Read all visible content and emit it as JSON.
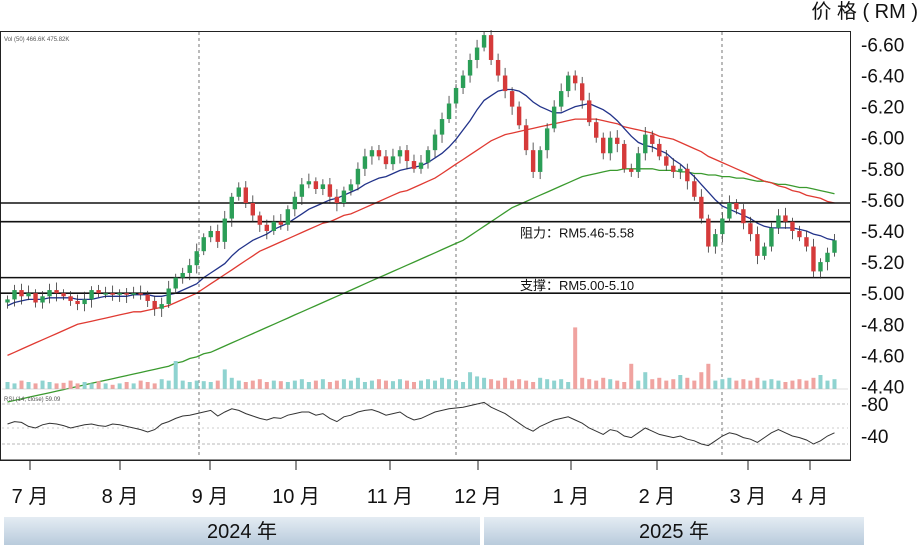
{
  "chart_data": {
    "type": "candlestick",
    "ylabel": "价 格 ( RM )",
    "price_ticks": [
      6.6,
      6.4,
      6.2,
      6.0,
      5.8,
      5.6,
      5.4,
      5.2,
      5.0,
      4.8,
      4.6,
      4.4
    ],
    "price_tick_labels": [
      "-6.60",
      "-6.40",
      "-6.20",
      "-6.00",
      "-5.80",
      "-5.60",
      "-5.40",
      "-5.20",
      "-5.00",
      "-4.80",
      "-4.60",
      "-4.40"
    ],
    "ylim": [
      4.3,
      6.68
    ],
    "rsi_ticks": [
      80,
      40
    ],
    "rsi_tick_labels": [
      "-80",
      "-40"
    ],
    "rsi_header": "RSI (14, close)  59.09",
    "volume_header": "Vol (50)  466.6K  475.82K",
    "months": [
      "7 月",
      "8 月",
      "9 月",
      "10 月",
      "11 月",
      "12 月",
      "1 月",
      "2 月",
      "3 月",
      "4 月"
    ],
    "years": [
      "2024 年",
      "2025 年"
    ],
    "annotations": [
      {
        "text": "阻力：RM5.46-5.58",
        "levels": [
          5.46,
          5.58
        ]
      },
      {
        "text": "支撑：RM5.00-5.10",
        "levels": [
          5.0,
          5.1
        ]
      }
    ],
    "series": [
      {
        "name": "close",
        "values": [
          4.96,
          5.02,
          4.98,
          5.0,
          4.94,
          4.98,
          5.02,
          5.0,
          4.98,
          4.95,
          4.93,
          4.96,
          5.02,
          5.0,
          5.0,
          4.99,
          5.0,
          4.99,
          5.0,
          4.99,
          4.95,
          4.9,
          4.93,
          5.03,
          5.1,
          5.13,
          5.18,
          5.27,
          5.36,
          5.4,
          5.33,
          5.48,
          5.62,
          5.68,
          5.58,
          5.5,
          5.44,
          5.4,
          5.46,
          5.44,
          5.54,
          5.62,
          5.7,
          5.72,
          5.67,
          5.7,
          5.62,
          5.58,
          5.66,
          5.7,
          5.8,
          5.88,
          5.92,
          5.88,
          5.83,
          5.88,
          5.92,
          5.85,
          5.8,
          5.84,
          5.92,
          6.02,
          6.12,
          6.22,
          6.32,
          6.4,
          6.5,
          6.58,
          6.66,
          6.5,
          6.4,
          6.3,
          6.2,
          6.08,
          5.92,
          5.78,
          5.92,
          6.06,
          6.2,
          6.3,
          6.4,
          6.35,
          6.24,
          6.1,
          6.0,
          5.9,
          6.0,
          5.96,
          5.8,
          5.78,
          5.9,
          6.02,
          5.96,
          5.88,
          5.82,
          5.78,
          5.8,
          5.72,
          5.62,
          5.48,
          5.3,
          5.38,
          5.48,
          5.58,
          5.54,
          5.45,
          5.38,
          5.24,
          5.3,
          5.42,
          5.5,
          5.46,
          5.4,
          5.36,
          5.3,
          5.14,
          5.2,
          5.26,
          5.34
        ]
      },
      {
        "name": "sma20",
        "values": [
          4.92,
          4.94,
          4.95,
          4.96,
          4.96,
          4.96,
          4.97,
          4.97,
          4.97,
          4.97,
          4.96,
          4.96,
          4.96,
          4.97,
          4.98,
          4.98,
          4.98,
          4.98,
          4.99,
          4.99,
          4.99,
          4.98,
          4.98,
          4.99,
          5.0,
          5.02,
          5.04,
          5.06,
          5.1,
          5.13,
          5.16,
          5.19,
          5.24,
          5.28,
          5.31,
          5.34,
          5.36,
          5.38,
          5.41,
          5.43,
          5.45,
          5.48,
          5.51,
          5.54,
          5.56,
          5.58,
          5.6,
          5.61,
          5.63,
          5.65,
          5.67,
          5.7,
          5.72,
          5.74,
          5.75,
          5.77,
          5.79,
          5.8,
          5.81,
          5.82,
          5.84,
          5.87,
          5.9,
          5.94,
          5.99,
          6.05,
          6.11,
          6.18,
          6.24,
          6.27,
          6.3,
          6.31,
          6.31,
          6.3,
          6.27,
          6.23,
          6.2,
          6.18,
          6.16,
          6.16,
          6.18,
          6.2,
          6.21,
          6.22,
          6.2,
          6.18,
          6.15,
          6.11,
          6.06,
          6.01,
          5.97,
          5.95,
          5.94,
          5.92,
          5.9,
          5.86,
          5.83,
          5.79,
          5.75,
          5.7,
          5.65,
          5.6,
          5.56,
          5.54,
          5.52,
          5.5,
          5.48,
          5.45,
          5.43,
          5.42,
          5.42,
          5.42,
          5.42,
          5.41,
          5.4,
          5.38,
          5.37,
          5.35,
          5.34
        ]
      },
      {
        "name": "sma50",
        "values": [
          4.6,
          4.62,
          4.64,
          4.66,
          4.68,
          4.7,
          4.72,
          4.74,
          4.76,
          4.78,
          4.8,
          4.81,
          4.82,
          4.83,
          4.84,
          4.85,
          4.86,
          4.87,
          4.88,
          4.88,
          4.89,
          4.9,
          4.91,
          4.92,
          4.94,
          4.96,
          4.98,
          5.0,
          5.03,
          5.06,
          5.09,
          5.12,
          5.15,
          5.18,
          5.21,
          5.24,
          5.27,
          5.29,
          5.31,
          5.33,
          5.35,
          5.37,
          5.39,
          5.41,
          5.43,
          5.45,
          5.46,
          5.48,
          5.5,
          5.51,
          5.53,
          5.55,
          5.57,
          5.59,
          5.61,
          5.63,
          5.65,
          5.66,
          5.68,
          5.7,
          5.72,
          5.74,
          5.77,
          5.8,
          5.83,
          5.86,
          5.89,
          5.92,
          5.95,
          5.98,
          6.0,
          6.02,
          6.03,
          6.04,
          6.05,
          6.06,
          6.07,
          6.08,
          6.09,
          6.1,
          6.11,
          6.12,
          6.12,
          6.12,
          6.12,
          6.11,
          6.1,
          6.09,
          6.07,
          6.06,
          6.05,
          6.04,
          6.03,
          6.01,
          6.0,
          5.99,
          5.97,
          5.95,
          5.93,
          5.91,
          5.88,
          5.86,
          5.84,
          5.82,
          5.8,
          5.78,
          5.76,
          5.74,
          5.72,
          5.71,
          5.69,
          5.68,
          5.66,
          5.65,
          5.63,
          5.62,
          5.61,
          5.59,
          5.58
        ]
      },
      {
        "name": "sma200",
        "values": [
          4.3,
          4.31,
          4.32,
          4.33,
          4.34,
          4.35,
          4.36,
          4.37,
          4.38,
          4.39,
          4.4,
          4.41,
          4.42,
          4.43,
          4.44,
          4.45,
          4.46,
          4.47,
          4.48,
          4.49,
          4.5,
          4.51,
          4.52,
          4.53,
          4.55,
          4.56,
          4.58,
          4.59,
          4.61,
          4.62,
          4.64,
          4.66,
          4.68,
          4.7,
          4.72,
          4.74,
          4.76,
          4.78,
          4.8,
          4.82,
          4.84,
          4.86,
          4.88,
          4.9,
          4.92,
          4.94,
          4.96,
          4.98,
          5.0,
          5.02,
          5.04,
          5.06,
          5.08,
          5.1,
          5.12,
          5.14,
          5.16,
          5.18,
          5.2,
          5.22,
          5.24,
          5.26,
          5.28,
          5.3,
          5.32,
          5.34,
          5.37,
          5.4,
          5.43,
          5.46,
          5.49,
          5.52,
          5.55,
          5.57,
          5.59,
          5.61,
          5.63,
          5.65,
          5.67,
          5.69,
          5.71,
          5.73,
          5.75,
          5.76,
          5.77,
          5.78,
          5.79,
          5.79,
          5.8,
          5.8,
          5.8,
          5.8,
          5.8,
          5.79,
          5.79,
          5.79,
          5.78,
          5.78,
          5.77,
          5.77,
          5.76,
          5.76,
          5.75,
          5.75,
          5.74,
          5.74,
          5.73,
          5.72,
          5.72,
          5.71,
          5.7,
          5.7,
          5.69,
          5.68,
          5.68,
          5.67,
          5.66,
          5.65,
          5.64
        ]
      },
      {
        "name": "volume",
        "values": [
          0.25,
          0.2,
          0.3,
          0.25,
          0.2,
          0.3,
          0.25,
          0.2,
          0.22,
          0.3,
          0.2,
          0.25,
          0.2,
          0.28,
          0.2,
          0.15,
          0.2,
          0.25,
          0.2,
          0.3,
          0.25,
          0.2,
          0.35,
          0.3,
          1.0,
          0.3,
          0.25,
          0.3,
          0.28,
          0.25,
          0.3,
          0.7,
          0.4,
          0.3,
          0.25,
          0.3,
          0.35,
          0.25,
          0.3,
          0.28,
          0.25,
          0.3,
          0.35,
          0.25,
          0.3,
          0.35,
          0.25,
          0.3,
          0.35,
          0.3,
          0.4,
          0.25,
          0.3,
          0.35,
          0.3,
          0.28,
          0.35,
          0.3,
          0.25,
          0.3,
          0.35,
          0.3,
          0.4,
          0.35,
          0.3,
          0.25,
          0.6,
          0.45,
          0.4,
          0.35,
          0.3,
          0.4,
          0.3,
          0.35,
          0.3,
          0.25,
          0.4,
          0.35,
          0.3,
          0.35,
          0.25,
          2.2,
          0.4,
          0.35,
          0.3,
          0.4,
          0.35,
          0.3,
          0.25,
          0.9,
          0.3,
          0.6,
          0.35,
          0.4,
          0.3,
          0.35,
          0.5,
          0.4,
          0.3,
          0.6,
          0.9,
          0.3,
          0.35,
          0.4,
          0.3,
          0.35,
          0.3,
          0.4,
          0.3,
          0.35,
          0.3,
          0.25,
          0.3,
          0.35,
          0.3,
          0.4,
          0.5,
          0.3,
          0.35
        ]
      },
      {
        "name": "rsi",
        "values": [
          55,
          58,
          57,
          52,
          50,
          54,
          56,
          55,
          53,
          50,
          52,
          54,
          55,
          53,
          52,
          55,
          54,
          52,
          50,
          48,
          45,
          48,
          55,
          58,
          62,
          65,
          66,
          68,
          70,
          72,
          65,
          70,
          74,
          72,
          68,
          65,
          62,
          60,
          63,
          62,
          66,
          68,
          70,
          70,
          66,
          68,
          62,
          58,
          64,
          66,
          70,
          72,
          73,
          70,
          66,
          68,
          70,
          64,
          60,
          62,
          66,
          70,
          72,
          74,
          75,
          76,
          78,
          80,
          82,
          76,
          72,
          68,
          62,
          56,
          50,
          46,
          52,
          56,
          60,
          62,
          64,
          60,
          56,
          50,
          46,
          42,
          48,
          46,
          40,
          38,
          44,
          50,
          46,
          42,
          40,
          38,
          40,
          36,
          34,
          30,
          28,
          34,
          40,
          44,
          42,
          38,
          36,
          32,
          38,
          44,
          48,
          44,
          40,
          38,
          35,
          30,
          34,
          40,
          44
        ]
      }
    ]
  }
}
